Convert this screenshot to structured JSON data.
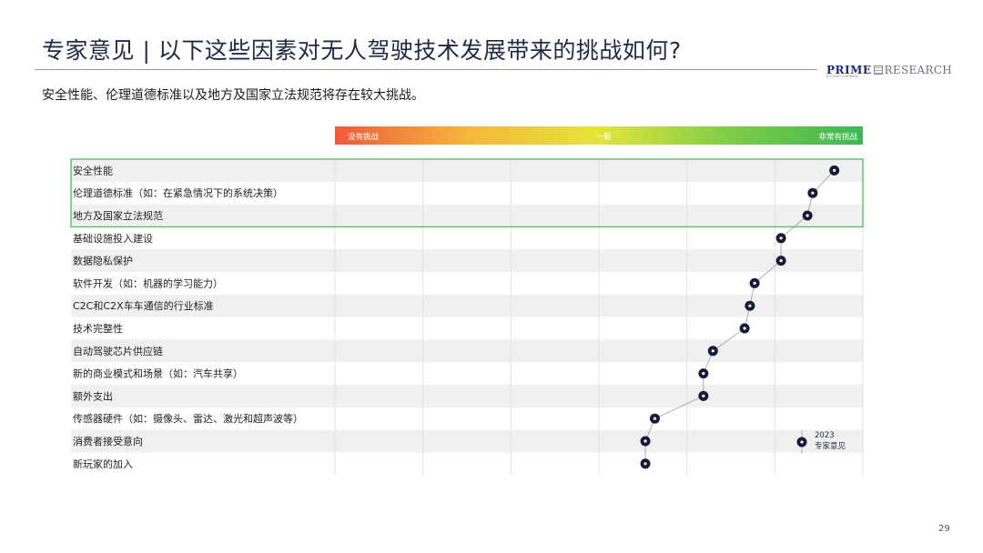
{
  "title": "专家意见 | 以下这些因素对无人驾驶技术发展带来的挑战如何?",
  "subtitle": "安全性能、伦理道德标准以及地方及国家立法规范将存在较大挑战。",
  "logo": {
    "main": "PRIME",
    "rest": "RESEARCH",
    "sub": "a Cision company"
  },
  "page_number": "29",
  "colors": {
    "marker": "#141c3a",
    "highlight_border": "#5cc86a",
    "row_shade": "#f0f0f0",
    "gradient": [
      "#f05a3c",
      "#f6b63a",
      "#e3e53a",
      "#7ecc48",
      "#3cb853"
    ]
  },
  "chart_data": {
    "type": "scatter",
    "scale_labels": [
      "没有挑战",
      "一般",
      "非常有挑战"
    ],
    "xlim": [
      0,
      1
    ],
    "categories": [
      "安全性能",
      "伦理道德标准（如：在紧急情况下的系统决策）",
      "地方及国家立法规范",
      "基础设施投入建设",
      "数据隐私保护",
      "软件开发（如：机器的学习能力）",
      "C2C和C2X车车通信的行业标准",
      "技术完整性",
      "自动驾驶芯片供应链",
      "新的商业模式和场景（如：汽车共享）",
      "额外支出",
      "传感器硬件（如：摄像头、雷达、激光和超声波等）",
      "消费者接受意向",
      "新玩家的加入"
    ],
    "series": [
      {
        "name": "2023 专家意见",
        "values": [
          0.946,
          0.905,
          0.895,
          0.845,
          0.845,
          0.795,
          0.786,
          0.776,
          0.716,
          0.698,
          0.698,
          0.606,
          0.588,
          0.588
        ]
      }
    ],
    "highlighted_rows": [
      0,
      1,
      2
    ],
    "legend": {
      "year": "2023",
      "label": "专家意见",
      "position": "bottom-right"
    },
    "grid": true
  }
}
